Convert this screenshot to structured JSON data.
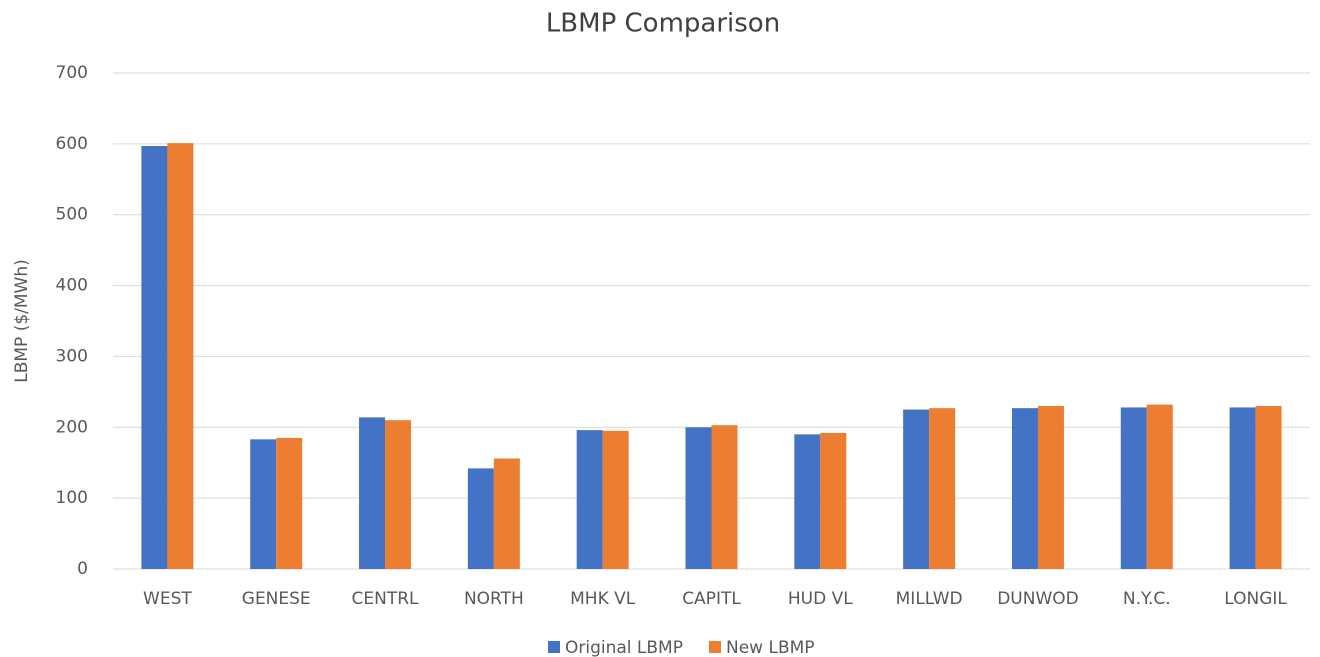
{
  "chart_data": {
    "type": "bar",
    "title": "LBMP Comparison",
    "y_label": "LBMP ($/MWh)",
    "categories": [
      "WEST",
      "GENESE",
      "CENTRL",
      "NORTH",
      "MHK VL",
      "CAPITL",
      "HUD VL",
      "MILLWD",
      "DUNWOD",
      "N.Y.C.",
      "LONGIL"
    ],
    "series": [
      {
        "name": "Original LBMP",
        "color": "#4472c4",
        "values": [
          597,
          183,
          214,
          142,
          196,
          200,
          190,
          225,
          227,
          228,
          228
        ]
      },
      {
        "name": "New LBMP",
        "color": "#ed7d31",
        "values": [
          601,
          185,
          210,
          156,
          195,
          203,
          192,
          227,
          230,
          232,
          230
        ]
      }
    ],
    "ylim": [
      0,
      700
    ],
    "yticks": [
      0,
      100,
      200,
      300,
      400,
      500,
      600,
      700
    ],
    "grid": true,
    "legend": "bottom"
  }
}
